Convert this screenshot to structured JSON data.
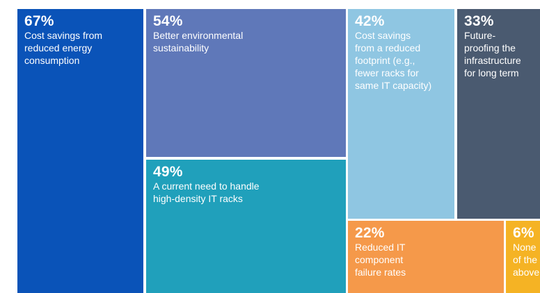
{
  "chart_data": {
    "type": "treemap",
    "items": [
      {
        "value": 67,
        "value_label": "67%",
        "lines": [
          "Cost savings from",
          "reduced energy",
          "consumption"
        ],
        "color": "#0a53b8",
        "text_color": "#ffffff"
      },
      {
        "value": 54,
        "value_label": "54%",
        "lines": [
          "Better environmental",
          "sustainability"
        ],
        "color": "#5f78b9",
        "text_color": "#ffffff"
      },
      {
        "value": 49,
        "value_label": "49%",
        "lines": [
          "A current need to handle",
          "high-density IT racks"
        ],
        "color": "#20a0bb",
        "text_color": "#ffffff"
      },
      {
        "value": 42,
        "value_label": "42%",
        "lines": [
          "Cost savings",
          "from a reduced",
          "footprint (e.g.,",
          "fewer racks for",
          "same IT capacity)"
        ],
        "color": "#8fc6e2",
        "text_color": "#ffffff"
      },
      {
        "value": 33,
        "value_label": "33%",
        "lines": [
          "Future-",
          "proofing the",
          "infrastructure",
          "for long term"
        ],
        "color": "#4a5a70",
        "text_color": "#ffffff"
      },
      {
        "value": 22,
        "value_label": "22%",
        "lines": [
          "Reduced IT",
          "component",
          "failure rates"
        ],
        "color": "#f5994a",
        "text_color": "#ffffff"
      },
      {
        "value": 6,
        "value_label": "6%",
        "lines": [
          "None",
          "of the",
          "above"
        ],
        "color": "#f5b324",
        "text_color": "#ffffff"
      }
    ]
  }
}
